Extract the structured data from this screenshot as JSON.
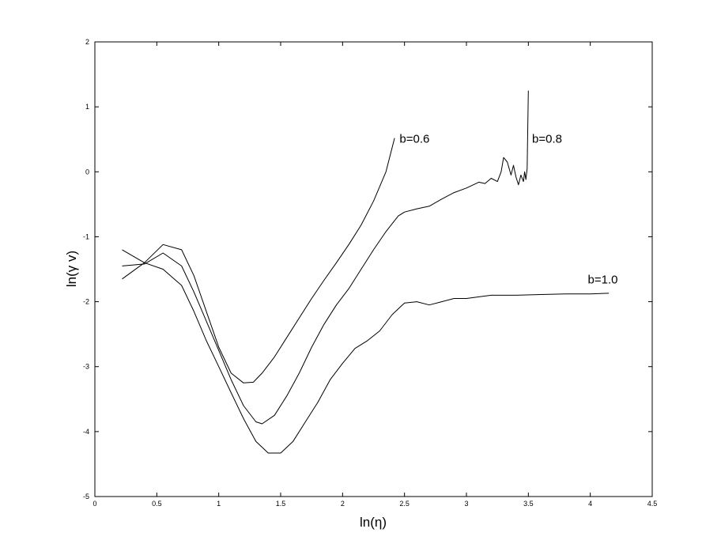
{
  "chart_data": {
    "type": "line",
    "xlabel": "ln(η)",
    "ylabel": "ln(γ v)",
    "xlim": [
      0,
      4.5
    ],
    "ylim": [
      -5,
      2
    ],
    "xticks": [
      "0",
      "0.5",
      "1",
      "1.5",
      "2",
      "2.5",
      "3",
      "3.5",
      "4",
      "4.5"
    ],
    "yticks": [
      "-5",
      "-4",
      "-3",
      "-2",
      "-1",
      "0",
      "1",
      "2"
    ],
    "grid": false,
    "series": [
      {
        "name": "b=0.6",
        "x": [
          0.22,
          0.4,
          0.55,
          0.7,
          0.8,
          0.9,
          1.0,
          1.1,
          1.2,
          1.28,
          1.35,
          1.45,
          1.55,
          1.65,
          1.75,
          1.85,
          1.95,
          2.05,
          2.15,
          2.25,
          2.35,
          2.42
        ],
        "y": [
          -1.65,
          -1.4,
          -1.12,
          -1.2,
          -1.6,
          -2.15,
          -2.7,
          -3.1,
          -3.25,
          -3.24,
          -3.1,
          -2.85,
          -2.55,
          -2.25,
          -1.95,
          -1.67,
          -1.4,
          -1.12,
          -0.82,
          -0.45,
          0.0,
          0.52
        ]
      },
      {
        "name": "b=0.8",
        "x": [
          0.22,
          0.4,
          0.55,
          0.7,
          0.8,
          0.9,
          1.0,
          1.1,
          1.2,
          1.3,
          1.35,
          1.45,
          1.55,
          1.65,
          1.75,
          1.85,
          1.95,
          2.05,
          2.15,
          2.25,
          2.35,
          2.45,
          2.5,
          2.6,
          2.7,
          2.8,
          2.9,
          3.0,
          3.1,
          3.15,
          3.2,
          3.25,
          3.28,
          3.3,
          3.33,
          3.36,
          3.38,
          3.4,
          3.42,
          3.44,
          3.46,
          3.47,
          3.48,
          3.49,
          3.5
        ],
        "y": [
          -1.45,
          -1.42,
          -1.25,
          -1.45,
          -1.85,
          -2.3,
          -2.75,
          -3.2,
          -3.6,
          -3.85,
          -3.88,
          -3.75,
          -3.45,
          -3.1,
          -2.7,
          -2.35,
          -2.05,
          -1.8,
          -1.5,
          -1.2,
          -0.92,
          -0.68,
          -0.62,
          -0.57,
          -0.53,
          -0.42,
          -0.32,
          -0.25,
          -0.16,
          -0.18,
          -0.1,
          -0.15,
          0.0,
          0.22,
          0.15,
          -0.05,
          0.1,
          -0.08,
          -0.2,
          -0.05,
          -0.15,
          0.0,
          -0.12,
          0.05,
          1.25
        ]
      },
      {
        "name": "b=1.0",
        "x": [
          0.22,
          0.4,
          0.55,
          0.7,
          0.8,
          0.9,
          1.0,
          1.1,
          1.2,
          1.3,
          1.4,
          1.5,
          1.6,
          1.7,
          1.8,
          1.9,
          2.0,
          2.1,
          2.2,
          2.3,
          2.4,
          2.5,
          2.6,
          2.7,
          2.8,
          2.9,
          3.0,
          3.2,
          3.4,
          3.6,
          3.8,
          4.0,
          4.15
        ],
        "y": [
          -1.2,
          -1.4,
          -1.5,
          -1.75,
          -2.15,
          -2.6,
          -3.0,
          -3.4,
          -3.8,
          -4.15,
          -4.33,
          -4.33,
          -4.15,
          -3.85,
          -3.55,
          -3.2,
          -2.95,
          -2.72,
          -2.6,
          -2.45,
          -2.2,
          -2.02,
          -2.0,
          -2.05,
          -2.0,
          -1.95,
          -1.95,
          -1.9,
          -1.9,
          -1.89,
          -1.88,
          -1.88,
          -1.87
        ]
      }
    ],
    "annotations": [
      {
        "text": "b=0.6",
        "x": 2.46,
        "y": 0.45
      },
      {
        "text": "b=0.8",
        "x": 3.53,
        "y": 0.45
      },
      {
        "text": "b=1.0",
        "x": 3.98,
        "y": -1.72
      }
    ]
  }
}
